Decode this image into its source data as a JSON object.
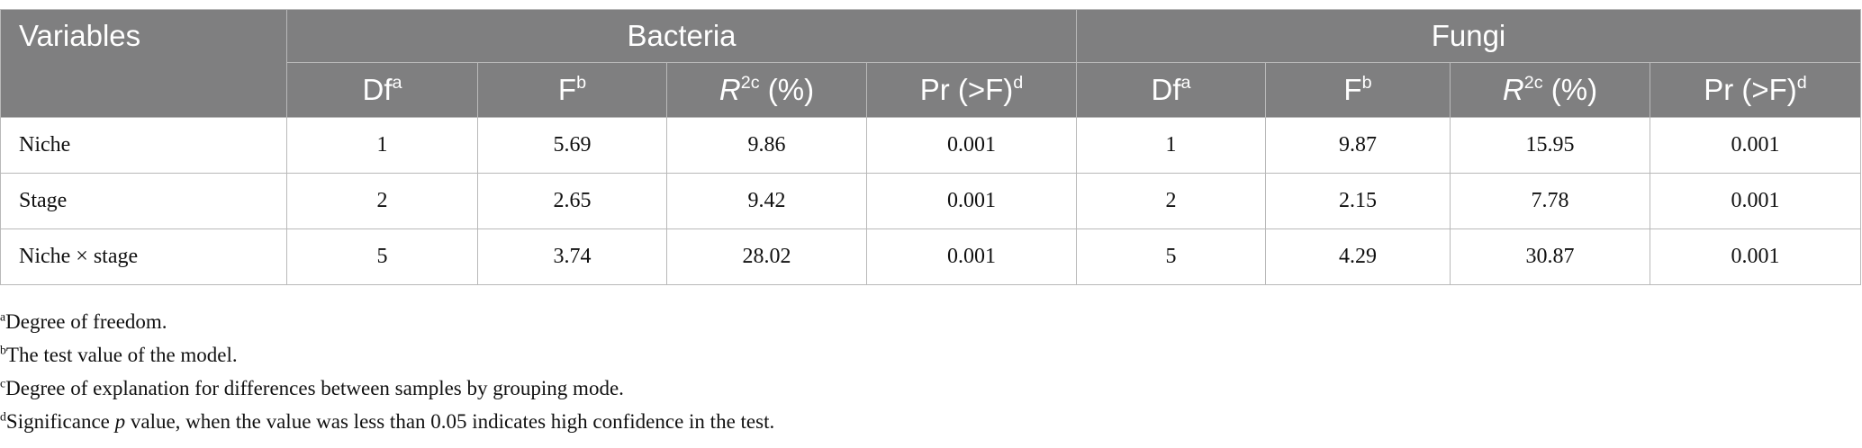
{
  "table": {
    "variables": "Variables",
    "groups": [
      {
        "name": "Bacteria",
        "columns": [
          {
            "text": "Df",
            "sup": "a"
          },
          {
            "text": "F",
            "sup": "b"
          },
          {
            "italic": "R",
            "sup": "2c",
            "text": " (%)"
          },
          {
            "text": "Pr (>F)",
            "sup": "d"
          }
        ]
      },
      {
        "name": "Fungi",
        "columns": [
          {
            "text": "Df",
            "sup": "a"
          },
          {
            "text": "F",
            "sup": "b"
          },
          {
            "italic": "R",
            "sup": "2c",
            "text": " (%)"
          },
          {
            "text": "Pr (>F)",
            "sup": "d"
          }
        ]
      }
    ],
    "rows": [
      [
        "Niche",
        1,
        5.69,
        9.86,
        0.001,
        1,
        9.87,
        15.95,
        0.001
      ],
      [
        "Stage",
        2,
        2.65,
        9.42,
        0.001,
        2,
        2.15,
        7.78,
        0.001
      ],
      [
        "Niche × stage",
        5,
        3.74,
        28.02,
        0.001,
        5,
        4.29,
        30.87,
        0.001
      ]
    ]
  },
  "footnotes": [
    {
      "mark": "a",
      "text": "Degree of freedom."
    },
    {
      "mark": "b",
      "text": "The test value of the model."
    },
    {
      "mark": "c",
      "text": "Degree of explanation for differences between samples by grouping mode."
    },
    {
      "mark": "d",
      "text": "Significance ",
      "italic": "p",
      "rest": " value, when the value was less than 0.05 indicates high confidence in the test."
    }
  ]
}
